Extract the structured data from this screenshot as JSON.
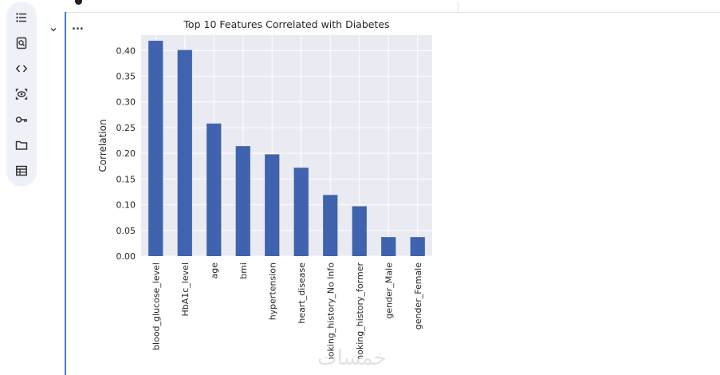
{
  "sidebar": {
    "items": [
      {
        "icon": "table-of-contents-icon"
      },
      {
        "icon": "find-replace-icon"
      },
      {
        "icon": "code-snippets-icon"
      },
      {
        "icon": "variables-icon"
      },
      {
        "icon": "secrets-key-icon"
      },
      {
        "icon": "files-folder-icon"
      },
      {
        "icon": "data-table-icon"
      }
    ]
  },
  "cell": {
    "output_menu_label": "..."
  },
  "watermark": "خمسات",
  "colors": {
    "bar": "#3f63ae",
    "plot_bg": "#eaeaf2",
    "grid": "#ffffff",
    "cell_border": "#3f7ad9"
  },
  "chart_data": {
    "type": "bar",
    "title": "Top 10 Features Correlated with Diabetes",
    "xlabel": "",
    "ylabel": "Correlation",
    "categories": [
      "blood_glucose_level",
      "HbA1c_level",
      "age",
      "bmi",
      "hypertension",
      "heart_disease",
      "smoking_history_No Info",
      "smoking_history_former",
      "gender_Male",
      "gender_Female"
    ],
    "values": [
      0.419,
      0.401,
      0.258,
      0.214,
      0.198,
      0.172,
      0.119,
      0.097,
      0.037,
      0.037
    ],
    "ylim": [
      0,
      0.43
    ],
    "yticks": [
      0.0,
      0.05,
      0.1,
      0.15,
      0.2,
      0.25,
      0.3,
      0.35,
      0.4
    ],
    "ytick_labels": [
      "0.00",
      "0.05",
      "0.10",
      "0.15",
      "0.20",
      "0.25",
      "0.30",
      "0.35",
      "0.40"
    ],
    "grid": true,
    "legend": "none"
  }
}
